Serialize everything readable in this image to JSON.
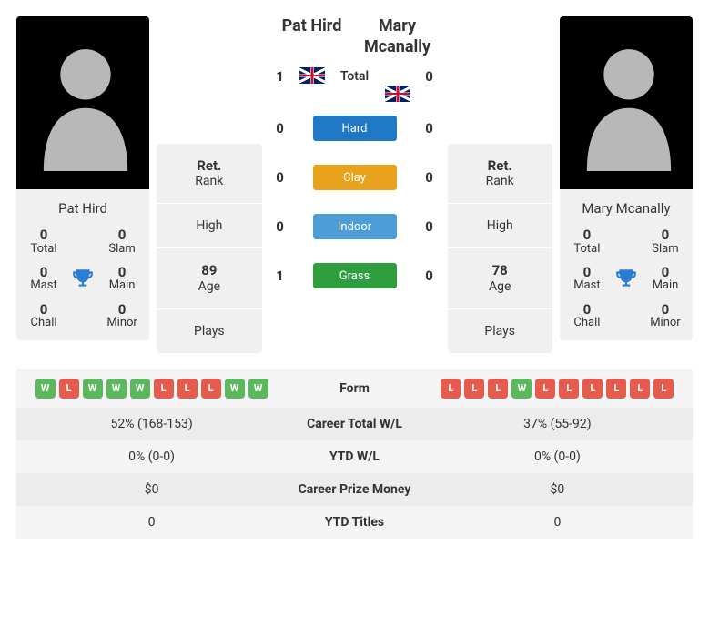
{
  "player1": {
    "name_header": "Pat Hird",
    "name_card": "Pat Hird",
    "flag": "uk",
    "titles": {
      "total": {
        "value": "0",
        "label": "Total"
      },
      "slam": {
        "value": "0",
        "label": "Slam"
      },
      "mast": {
        "value": "0",
        "label": "Mast"
      },
      "main": {
        "value": "0",
        "label": "Main"
      },
      "chall": {
        "value": "0",
        "label": "Chall"
      },
      "minor": {
        "value": "0",
        "label": "Minor"
      }
    },
    "stats": {
      "rank": {
        "value": "Ret.",
        "label": "Rank"
      },
      "high": {
        "value": "",
        "label": "High"
      },
      "age": {
        "value": "89",
        "label": "Age"
      },
      "plays": {
        "value": "",
        "label": "Plays"
      }
    }
  },
  "player2": {
    "name_header": "Mary Mcanally",
    "name_card": "Mary Mcanally",
    "flag": "uk",
    "titles": {
      "total": {
        "value": "0",
        "label": "Total"
      },
      "slam": {
        "value": "0",
        "label": "Slam"
      },
      "mast": {
        "value": "0",
        "label": "Mast"
      },
      "main": {
        "value": "0",
        "label": "Main"
      },
      "chall": {
        "value": "0",
        "label": "Chall"
      },
      "minor": {
        "value": "0",
        "label": "Minor"
      }
    },
    "stats": {
      "rank": {
        "value": "Ret.",
        "label": "Rank"
      },
      "high": {
        "value": "",
        "label": "High"
      },
      "age": {
        "value": "78",
        "label": "Age"
      },
      "plays": {
        "value": "",
        "label": "Plays"
      }
    }
  },
  "h2h": {
    "total": {
      "label": "Total",
      "p1": "1",
      "p2": "0",
      "color": null
    },
    "hard": {
      "label": "Hard",
      "p1": "0",
      "p2": "0",
      "color": "#1f79c7"
    },
    "clay": {
      "label": "Clay",
      "p1": "0",
      "p2": "0",
      "color": "#e8a21c"
    },
    "indoor": {
      "label": "Indoor",
      "p1": "0",
      "p2": "0",
      "color": "#4d9ed8"
    },
    "grass": {
      "label": "Grass",
      "p1": "1",
      "p2": "0",
      "color": "#2e9e3f"
    }
  },
  "form": {
    "label": "Form",
    "p1": [
      "W",
      "L",
      "W",
      "W",
      "W",
      "L",
      "L",
      "L",
      "W",
      "W"
    ],
    "p2": [
      "L",
      "L",
      "L",
      "W",
      "L",
      "L",
      "L",
      "L",
      "L",
      "L"
    ]
  },
  "rows": {
    "career_wl": {
      "label": "Career Total W/L",
      "p1": "52% (168-153)",
      "p2": "37% (55-92)"
    },
    "ytd_wl": {
      "label": "YTD W/L",
      "p1": "0% (0-0)",
      "p2": "0% (0-0)"
    },
    "prize": {
      "label": "Career Prize Money",
      "p1": "$0",
      "p2": "$0"
    },
    "ytd_titles": {
      "label": "YTD Titles",
      "p1": "0",
      "p2": "0"
    }
  },
  "colors": {
    "win_badge": "#5cb85c",
    "loss_badge": "#e55b4e",
    "trophy": "#2a7fd4"
  }
}
